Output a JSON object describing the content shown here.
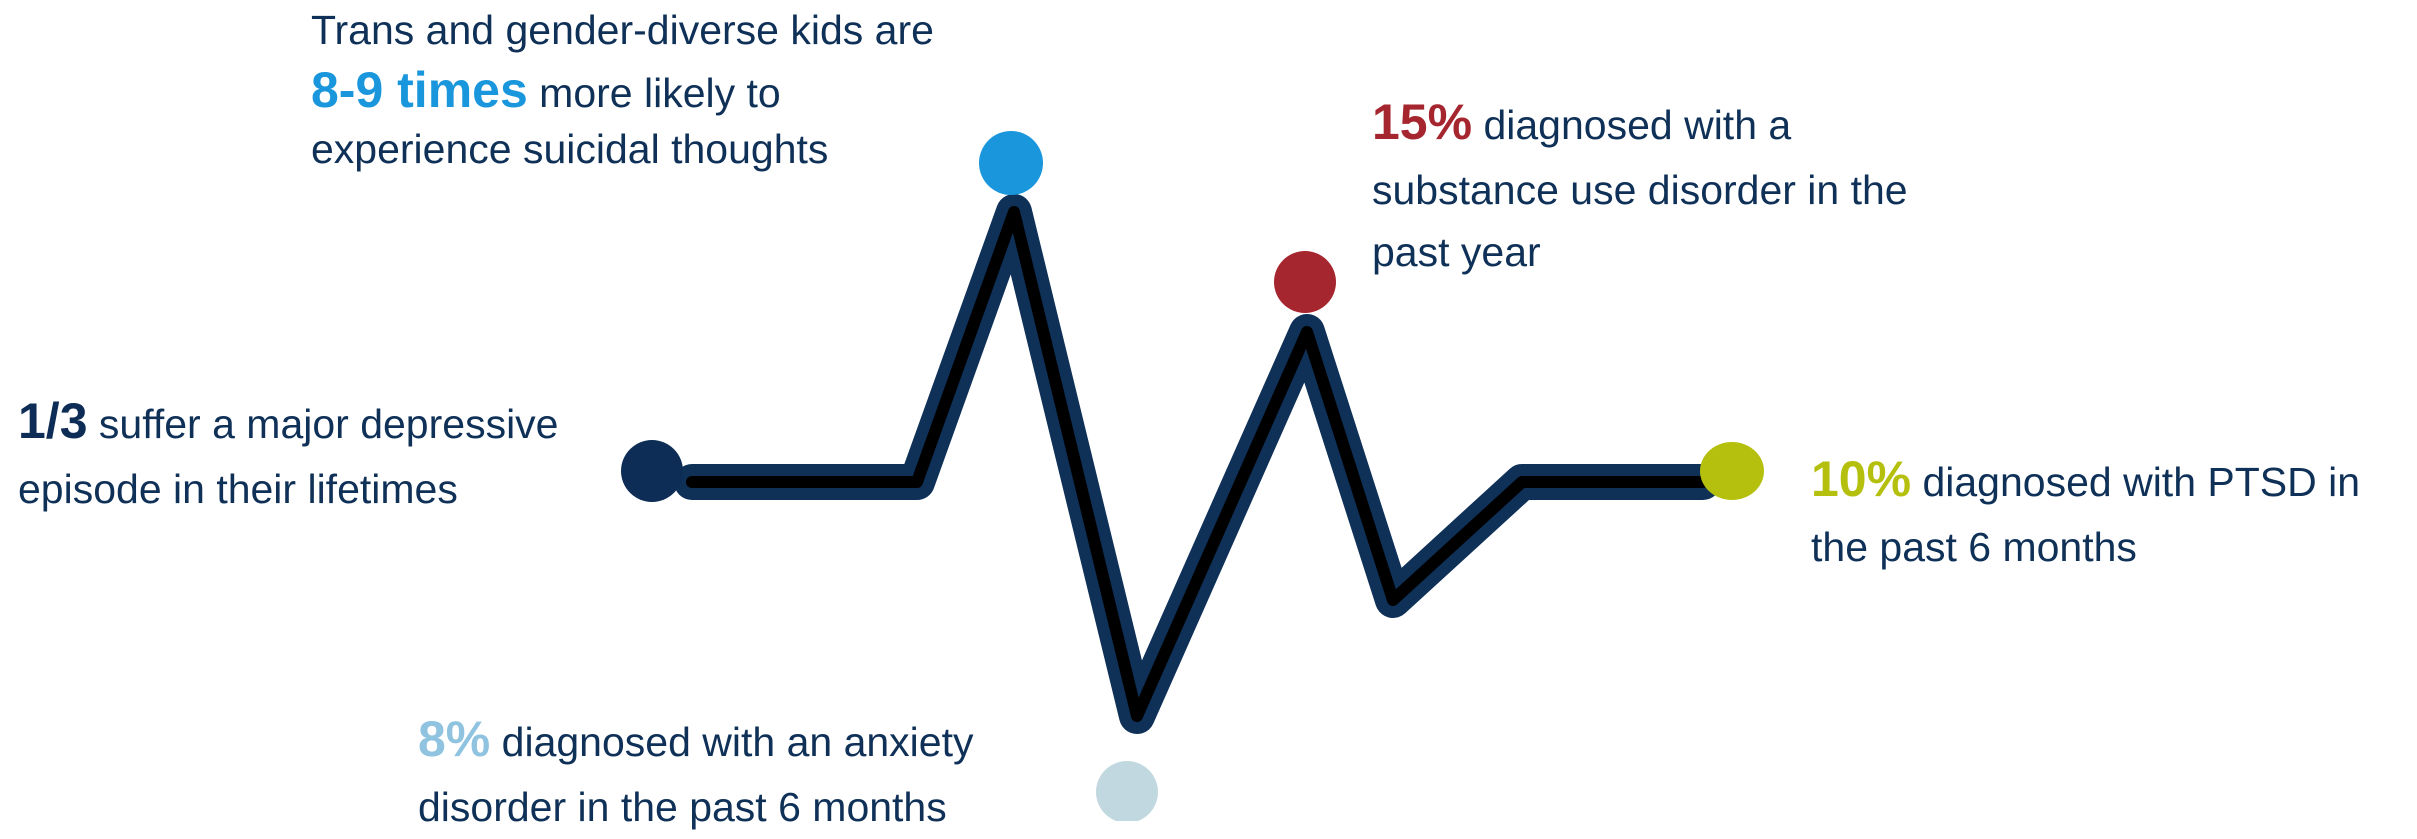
{
  "stats": {
    "depression": {
      "highlight": "1/3",
      "text_line1": " suffer a major depressive",
      "text_line2": "episode in their lifetimes",
      "color": "#0d2d56"
    },
    "suicidal": {
      "line1": "Trans and gender-diverse kids are",
      "highlight": "8-9 times",
      "text_line2": " more likely to",
      "text_line3": "experience suicidal thoughts",
      "color": "#1a96dc"
    },
    "substance": {
      "highlight": "15%",
      "text_line1": " diagnosed with a",
      "text_line2": "substance use disorder in the",
      "text_line3": "past year",
      "color": "#a6262f"
    },
    "ptsd": {
      "highlight": "10%",
      "text_line1": " diagnosed with PTSD in",
      "text_line2": "the past 6 months",
      "color": "#b5c00e"
    },
    "anxiety": {
      "highlight": "8%",
      "text_line1": " diagnosed with an anxiety",
      "text_line2": "disorder in the past 6 months",
      "color": "#8fc3e0"
    }
  },
  "line_colors": {
    "outer": "#0f3057",
    "inner": "#000000"
  },
  "dot_colors": {
    "depression": "#0d2d56",
    "suicidal": "#1a96dc",
    "substance": "#a6262f",
    "ptsd": "#b5c00e",
    "anxiety": "#c2d8e0"
  }
}
